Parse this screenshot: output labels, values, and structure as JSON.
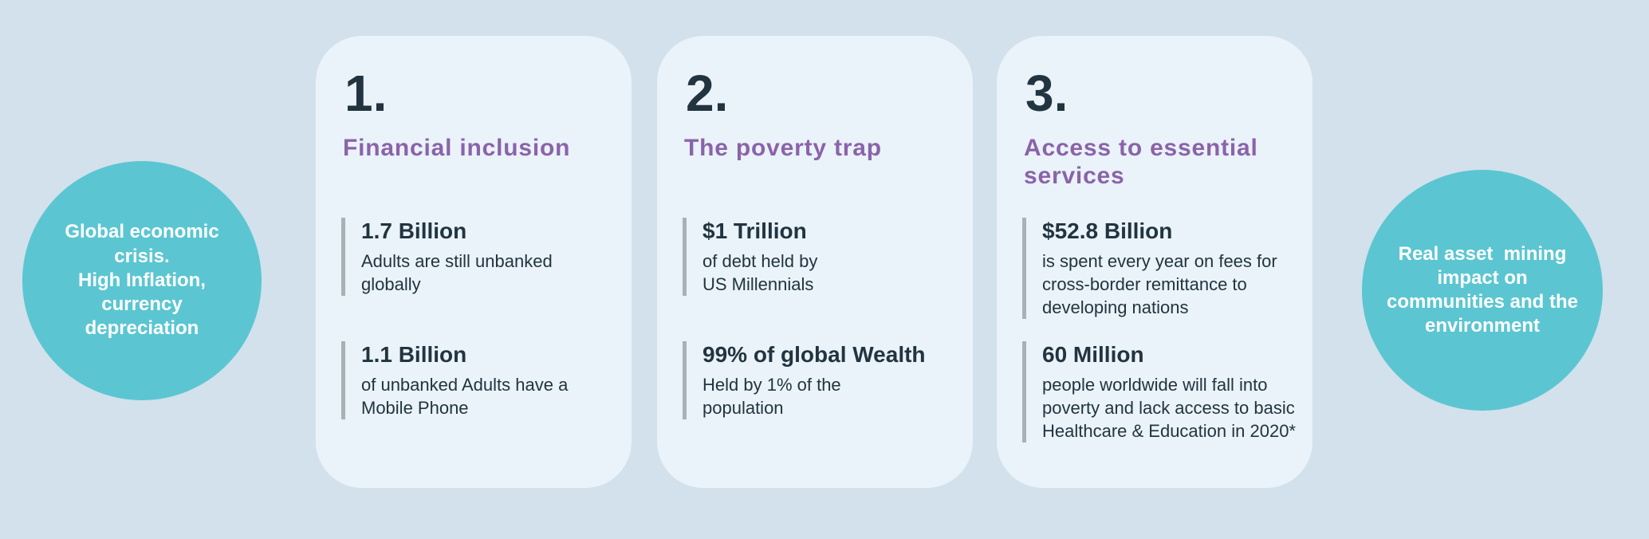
{
  "colors": {
    "background": "#d2e1ec",
    "card": "#e9f3f9",
    "teal": "#5bc6d1",
    "purple": "#8b63a9",
    "dark": "#223440",
    "bar": "#a9b1b7",
    "white": "#ffffff"
  },
  "left_circle": {
    "text": "Global economic\ncrisis.\nHigh Inflation,\ncurrency\ndepreciation"
  },
  "right_circle": {
    "text": "Real asset  mining\nimpact on\ncommunities and the\nenvironment"
  },
  "cards": [
    {
      "number": "1.",
      "title": "Financial inclusion",
      "stats": [
        {
          "value": "1.7 Billion",
          "desc": "Adults are still unbanked\nglobally"
        },
        {
          "value": "1.1 Billion",
          "desc": "of unbanked Adults have a\nMobile Phone"
        }
      ]
    },
    {
      "number": "2.",
      "title": "The poverty trap",
      "stats": [
        {
          "value": "$1 Trillion",
          "desc": "of debt held by\nUS Millennials"
        },
        {
          "value": "99% of global Wealth",
          "desc": "Held by 1% of the\npopulation"
        }
      ]
    },
    {
      "number": "3.",
      "title": "Access to essential\nservices",
      "stats": [
        {
          "value": "$52.8 Billion",
          "desc": "is spent every year on fees for\ncross-border remittance to\ndeveloping nations"
        },
        {
          "value": "60 Million",
          "desc": "people worldwide will fall into\npoverty and lack access to basic\nHealthcare & Education in 2020*"
        }
      ]
    }
  ]
}
